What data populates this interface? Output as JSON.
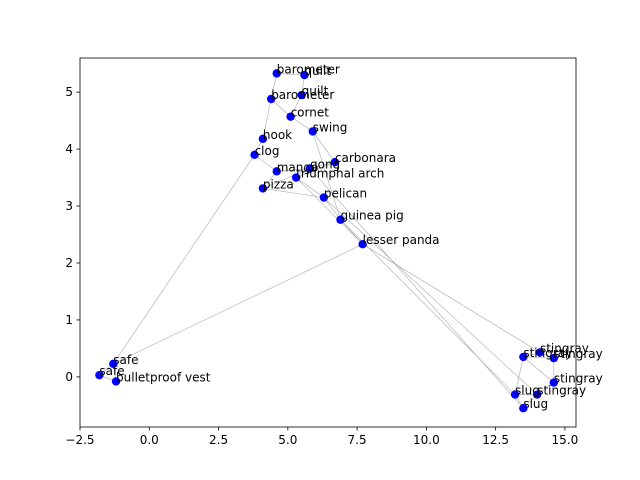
{
  "chart_data": {
    "type": "scatter",
    "title": "",
    "xlabel": "",
    "ylabel": "",
    "xlim": [
      -2.5,
      15.4
    ],
    "ylim": [
      -0.88,
      5.6
    ],
    "xticks": [
      -2.5,
      0.0,
      2.5,
      5.0,
      7.5,
      10.0,
      12.5,
      15.0
    ],
    "xtick_labels": [
      "−2.5",
      "0.0",
      "2.5",
      "5.0",
      "7.5",
      "10.0",
      "12.5",
      "15.0"
    ],
    "yticks": [
      0,
      1,
      2,
      3,
      4,
      5
    ],
    "ytick_labels": [
      "0",
      "1",
      "2",
      "3",
      "4",
      "5"
    ],
    "grid": false,
    "point_color": "#0000ff",
    "edge_color": "#aaaaaa",
    "points": [
      {
        "label": "barometer",
        "x": 4.6,
        "y": 5.33
      },
      {
        "label": "quilt",
        "x": 5.6,
        "y": 5.3
      },
      {
        "label": "quilt",
        "x": 5.5,
        "y": 4.95
      },
      {
        "label": "barometer",
        "x": 4.4,
        "y": 4.88
      },
      {
        "label": "cornet",
        "x": 5.1,
        "y": 4.57
      },
      {
        "label": "swing",
        "x": 5.9,
        "y": 4.31
      },
      {
        "label": "hook",
        "x": 4.1,
        "y": 4.18
      },
      {
        "label": "clog",
        "x": 3.8,
        "y": 3.9
      },
      {
        "label": "carbonara",
        "x": 6.7,
        "y": 3.77
      },
      {
        "label": "gong",
        "x": 5.8,
        "y": 3.66
      },
      {
        "label": "mango",
        "x": 4.6,
        "y": 3.61
      },
      {
        "label": "triumphal arch",
        "x": 5.3,
        "y": 3.5
      },
      {
        "label": "pizza",
        "x": 4.1,
        "y": 3.31
      },
      {
        "label": "pelican",
        "x": 6.3,
        "y": 3.15
      },
      {
        "label": "guinea pig",
        "x": 6.9,
        "y": 2.76
      },
      {
        "label": "lesser panda",
        "x": 7.7,
        "y": 2.33
      },
      {
        "label": "stingray",
        "x": 14.1,
        "y": 0.43
      },
      {
        "label": "stingray",
        "x": 13.5,
        "y": 0.35
      },
      {
        "label": "stingray",
        "x": 14.6,
        "y": 0.33
      },
      {
        "label": "stingray",
        "x": 14.6,
        "y": -0.1
      },
      {
        "label": "slug",
        "x": 13.2,
        "y": -0.31
      },
      {
        "label": "stingray",
        "x": 14.0,
        "y": -0.31
      },
      {
        "label": "slug",
        "x": 13.5,
        "y": -0.55
      },
      {
        "label": "safe",
        "x": -1.3,
        "y": 0.23
      },
      {
        "label": "safe",
        "x": -1.8,
        "y": 0.03
      },
      {
        "label": "bulletproof vest",
        "x": -1.2,
        "y": -0.08
      }
    ],
    "edges": [
      [
        0,
        1
      ],
      [
        0,
        3
      ],
      [
        1,
        2
      ],
      [
        2,
        4
      ],
      [
        3,
        4
      ],
      [
        3,
        6
      ],
      [
        4,
        5
      ],
      [
        5,
        8
      ],
      [
        6,
        7
      ],
      [
        7,
        10
      ],
      [
        7,
        23
      ],
      [
        8,
        9
      ],
      [
        8,
        11
      ],
      [
        9,
        10
      ],
      [
        9,
        11
      ],
      [
        10,
        12
      ],
      [
        11,
        13
      ],
      [
        12,
        13
      ],
      [
        12,
        9
      ],
      [
        13,
        14
      ],
      [
        14,
        15
      ],
      [
        15,
        16
      ],
      [
        15,
        23
      ],
      [
        14,
        20
      ],
      [
        13,
        21
      ],
      [
        9,
        22
      ],
      [
        16,
        17
      ],
      [
        16,
        18
      ],
      [
        17,
        18
      ],
      [
        18,
        19
      ],
      [
        17,
        19
      ],
      [
        19,
        21
      ],
      [
        20,
        21
      ],
      [
        20,
        22
      ],
      [
        21,
        22
      ],
      [
        17,
        20
      ],
      [
        23,
        24
      ],
      [
        23,
        25
      ],
      [
        24,
        25
      ],
      [
        5,
        14
      ],
      [
        11,
        15
      ]
    ]
  }
}
